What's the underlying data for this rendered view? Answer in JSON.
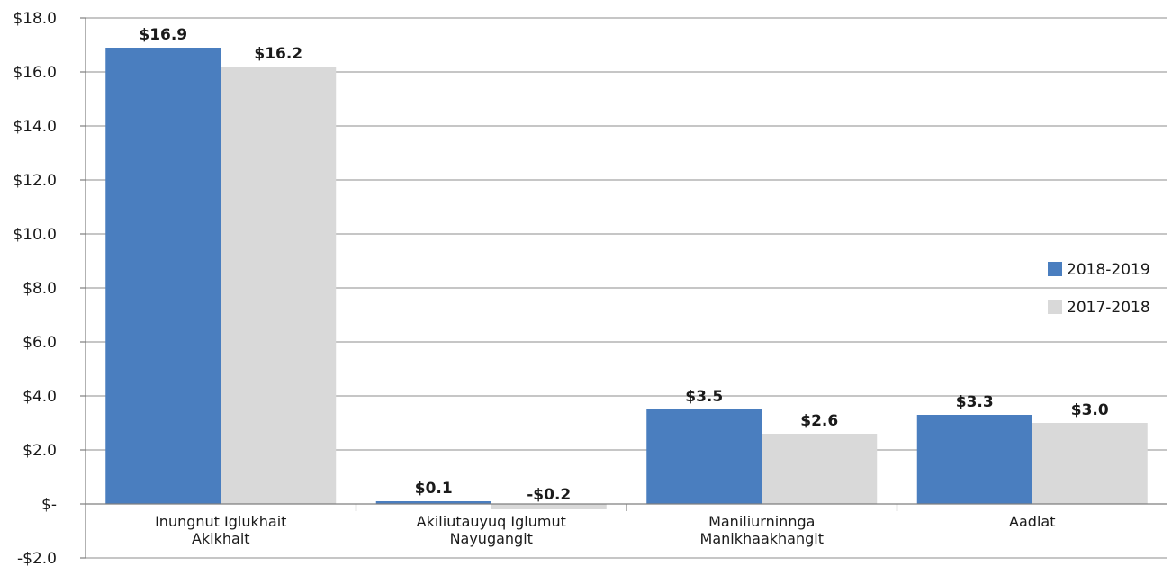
{
  "chart_data": {
    "type": "bar",
    "categories": [
      [
        "Inungnut Iglukhait",
        "Akikhait"
      ],
      [
        "Akiliutauyuq Iglumut",
        "Nayugangit"
      ],
      [
        "Maniliurninnga",
        "Manikhaakhangit"
      ],
      [
        "Aadlat"
      ]
    ],
    "series": [
      {
        "name": "2018-2019",
        "color": "#4a7ebf",
        "values": [
          16.9,
          0.1,
          3.5,
          3.3
        ],
        "labels": [
          "$16.9",
          "$0.1",
          "$3.5",
          "$3.3"
        ]
      },
      {
        "name": "2017-2018",
        "color": "#d9d9d9",
        "values": [
          16.2,
          -0.2,
          2.6,
          3.0
        ],
        "labels": [
          "$16.2",
          "-$0.2",
          "$2.6",
          "$3.0"
        ]
      }
    ],
    "ylim": [
      -2.0,
      18.0
    ],
    "yticks": [
      18.0,
      16.0,
      14.0,
      12.0,
      10.0,
      8.0,
      6.0,
      4.0,
      2.0,
      0.0,
      -2.0
    ],
    "ytick_labels": [
      "$18.0",
      "$16.0",
      "$14.0",
      "$12.0",
      "$10.0",
      "$8.0",
      "$6.0",
      "$4.0",
      "$2.0",
      "$-",
      "-$2.0"
    ],
    "grid": true,
    "legend": "right",
    "title": "",
    "xlabel": "",
    "ylabel": ""
  }
}
